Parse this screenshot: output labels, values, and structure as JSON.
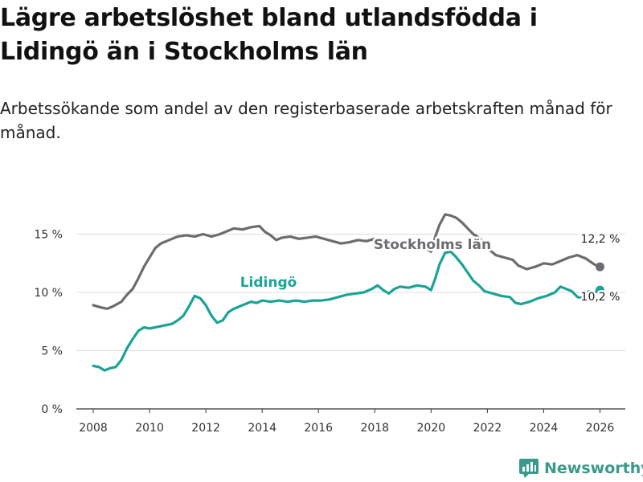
{
  "title": "Lägre arbetslöshet bland utlandsfödda i Lidingö än i Stockholms län",
  "subtitle": "Arbetssökande som andel av den registerbaserade arbetskraften månad för månad.",
  "brand": "Newsworthy",
  "colors": {
    "stockholm": "#6d6b70",
    "lidingo": "#1aa396",
    "grid": "#dddddd",
    "axis": "#333333",
    "brand": "#3a9a8c"
  },
  "chart_data": {
    "type": "line",
    "xlim": [
      2007.4,
      2026.9
    ],
    "ylim": [
      0,
      18
    ],
    "x_ticks": [
      2008,
      2010,
      2012,
      2014,
      2016,
      2018,
      2020,
      2022,
      2024,
      2026
    ],
    "x_tick_labels": [
      "2008",
      "2010",
      "2012",
      "2014",
      "2016",
      "2018",
      "2020",
      "2022",
      "2024",
      "2026"
    ],
    "y_ticks": [
      0,
      5,
      10,
      15
    ],
    "y_tick_labels": [
      "0 %",
      "5 %",
      "10 %",
      "15 %"
    ],
    "series": [
      {
        "name": "Stockholms län",
        "label": "Stockholms län",
        "end_label": "12,2 %",
        "color": "#6d6b70",
        "points": [
          [
            2008.0,
            8.9
          ],
          [
            2008.3,
            8.7
          ],
          [
            2008.5,
            8.6
          ],
          [
            2008.7,
            8.8
          ],
          [
            2009.0,
            9.2
          ],
          [
            2009.2,
            9.8
          ],
          [
            2009.4,
            10.3
          ],
          [
            2009.6,
            11.2
          ],
          [
            2009.8,
            12.2
          ],
          [
            2010.0,
            13.0
          ],
          [
            2010.2,
            13.8
          ],
          [
            2010.4,
            14.2
          ],
          [
            2010.6,
            14.4
          ],
          [
            2010.8,
            14.6
          ],
          [
            2011.0,
            14.8
          ],
          [
            2011.3,
            14.9
          ],
          [
            2011.6,
            14.8
          ],
          [
            2011.9,
            15.0
          ],
          [
            2012.2,
            14.8
          ],
          [
            2012.5,
            15.0
          ],
          [
            2012.8,
            15.3
          ],
          [
            2013.0,
            15.5
          ],
          [
            2013.3,
            15.4
          ],
          [
            2013.6,
            15.6
          ],
          [
            2013.9,
            15.7
          ],
          [
            2014.1,
            15.2
          ],
          [
            2014.3,
            14.9
          ],
          [
            2014.5,
            14.5
          ],
          [
            2014.7,
            14.7
          ],
          [
            2015.0,
            14.8
          ],
          [
            2015.3,
            14.6
          ],
          [
            2015.6,
            14.7
          ],
          [
            2015.9,
            14.8
          ],
          [
            2016.2,
            14.6
          ],
          [
            2016.5,
            14.4
          ],
          [
            2016.8,
            14.2
          ],
          [
            2017.1,
            14.3
          ],
          [
            2017.4,
            14.5
          ],
          [
            2017.7,
            14.4
          ],
          [
            2018.0,
            14.6
          ],
          [
            2018.3,
            14.3
          ],
          [
            2018.6,
            14.1
          ],
          [
            2018.9,
            14.0
          ],
          [
            2019.2,
            13.9
          ],
          [
            2019.5,
            14.0
          ],
          [
            2019.8,
            13.8
          ],
          [
            2020.0,
            13.5
          ],
          [
            2020.15,
            14.8
          ],
          [
            2020.3,
            15.8
          ],
          [
            2020.5,
            16.7
          ],
          [
            2020.7,
            16.6
          ],
          [
            2020.9,
            16.4
          ],
          [
            2021.1,
            16.0
          ],
          [
            2021.3,
            15.5
          ],
          [
            2021.5,
            15.0
          ],
          [
            2021.7,
            14.7
          ],
          [
            2021.9,
            14.2
          ],
          [
            2022.1,
            13.6
          ],
          [
            2022.3,
            13.2
          ],
          [
            2022.6,
            13.0
          ],
          [
            2022.9,
            12.8
          ],
          [
            2023.1,
            12.3
          ],
          [
            2023.4,
            12.0
          ],
          [
            2023.7,
            12.2
          ],
          [
            2024.0,
            12.5
          ],
          [
            2024.3,
            12.4
          ],
          [
            2024.6,
            12.7
          ],
          [
            2024.9,
            13.0
          ],
          [
            2025.2,
            13.2
          ],
          [
            2025.5,
            12.9
          ],
          [
            2025.8,
            12.4
          ],
          [
            2026.0,
            12.2
          ]
        ]
      },
      {
        "name": "Lidingö",
        "label": "Lidingö",
        "end_label": "10,2 %",
        "color": "#1aa396",
        "points": [
          [
            2008.0,
            3.7
          ],
          [
            2008.2,
            3.6
          ],
          [
            2008.4,
            3.3
          ],
          [
            2008.6,
            3.5
          ],
          [
            2008.8,
            3.6
          ],
          [
            2009.0,
            4.2
          ],
          [
            2009.2,
            5.2
          ],
          [
            2009.4,
            6.0
          ],
          [
            2009.6,
            6.7
          ],
          [
            2009.8,
            7.0
          ],
          [
            2010.0,
            6.9
          ],
          [
            2010.2,
            7.0
          ],
          [
            2010.4,
            7.1
          ],
          [
            2010.6,
            7.2
          ],
          [
            2010.8,
            7.3
          ],
          [
            2011.0,
            7.6
          ],
          [
            2011.2,
            8.0
          ],
          [
            2011.4,
            8.8
          ],
          [
            2011.6,
            9.7
          ],
          [
            2011.8,
            9.5
          ],
          [
            2012.0,
            8.9
          ],
          [
            2012.2,
            8.0
          ],
          [
            2012.4,
            7.4
          ],
          [
            2012.6,
            7.6
          ],
          [
            2012.8,
            8.3
          ],
          [
            2013.0,
            8.6
          ],
          [
            2013.2,
            8.8
          ],
          [
            2013.4,
            9.0
          ],
          [
            2013.6,
            9.2
          ],
          [
            2013.8,
            9.1
          ],
          [
            2014.0,
            9.3
          ],
          [
            2014.3,
            9.2
          ],
          [
            2014.6,
            9.3
          ],
          [
            2014.9,
            9.2
          ],
          [
            2015.2,
            9.3
          ],
          [
            2015.5,
            9.2
          ],
          [
            2015.8,
            9.3
          ],
          [
            2016.1,
            9.3
          ],
          [
            2016.4,
            9.4
          ],
          [
            2016.7,
            9.6
          ],
          [
            2017.0,
            9.8
          ],
          [
            2017.3,
            9.9
          ],
          [
            2017.6,
            10.0
          ],
          [
            2017.9,
            10.3
          ],
          [
            2018.1,
            10.6
          ],
          [
            2018.3,
            10.2
          ],
          [
            2018.5,
            9.9
          ],
          [
            2018.7,
            10.3
          ],
          [
            2018.9,
            10.5
          ],
          [
            2019.2,
            10.4
          ],
          [
            2019.5,
            10.6
          ],
          [
            2019.8,
            10.5
          ],
          [
            2020.0,
            10.2
          ],
          [
            2020.15,
            11.2
          ],
          [
            2020.3,
            12.4
          ],
          [
            2020.5,
            13.4
          ],
          [
            2020.7,
            13.5
          ],
          [
            2020.9,
            13.0
          ],
          [
            2021.1,
            12.4
          ],
          [
            2021.3,
            11.7
          ],
          [
            2021.5,
            11.0
          ],
          [
            2021.7,
            10.6
          ],
          [
            2021.9,
            10.1
          ],
          [
            2022.2,
            9.9
          ],
          [
            2022.5,
            9.7
          ],
          [
            2022.8,
            9.6
          ],
          [
            2023.0,
            9.1
          ],
          [
            2023.2,
            9.0
          ],
          [
            2023.5,
            9.2
          ],
          [
            2023.8,
            9.5
          ],
          [
            2024.1,
            9.7
          ],
          [
            2024.4,
            10.0
          ],
          [
            2024.6,
            10.5
          ],
          [
            2024.8,
            10.3
          ],
          [
            2025.0,
            10.1
          ],
          [
            2025.2,
            9.6
          ],
          [
            2025.4,
            9.5
          ],
          [
            2025.6,
            10.1
          ],
          [
            2025.8,
            10.0
          ],
          [
            2026.0,
            10.2
          ]
        ]
      }
    ]
  }
}
